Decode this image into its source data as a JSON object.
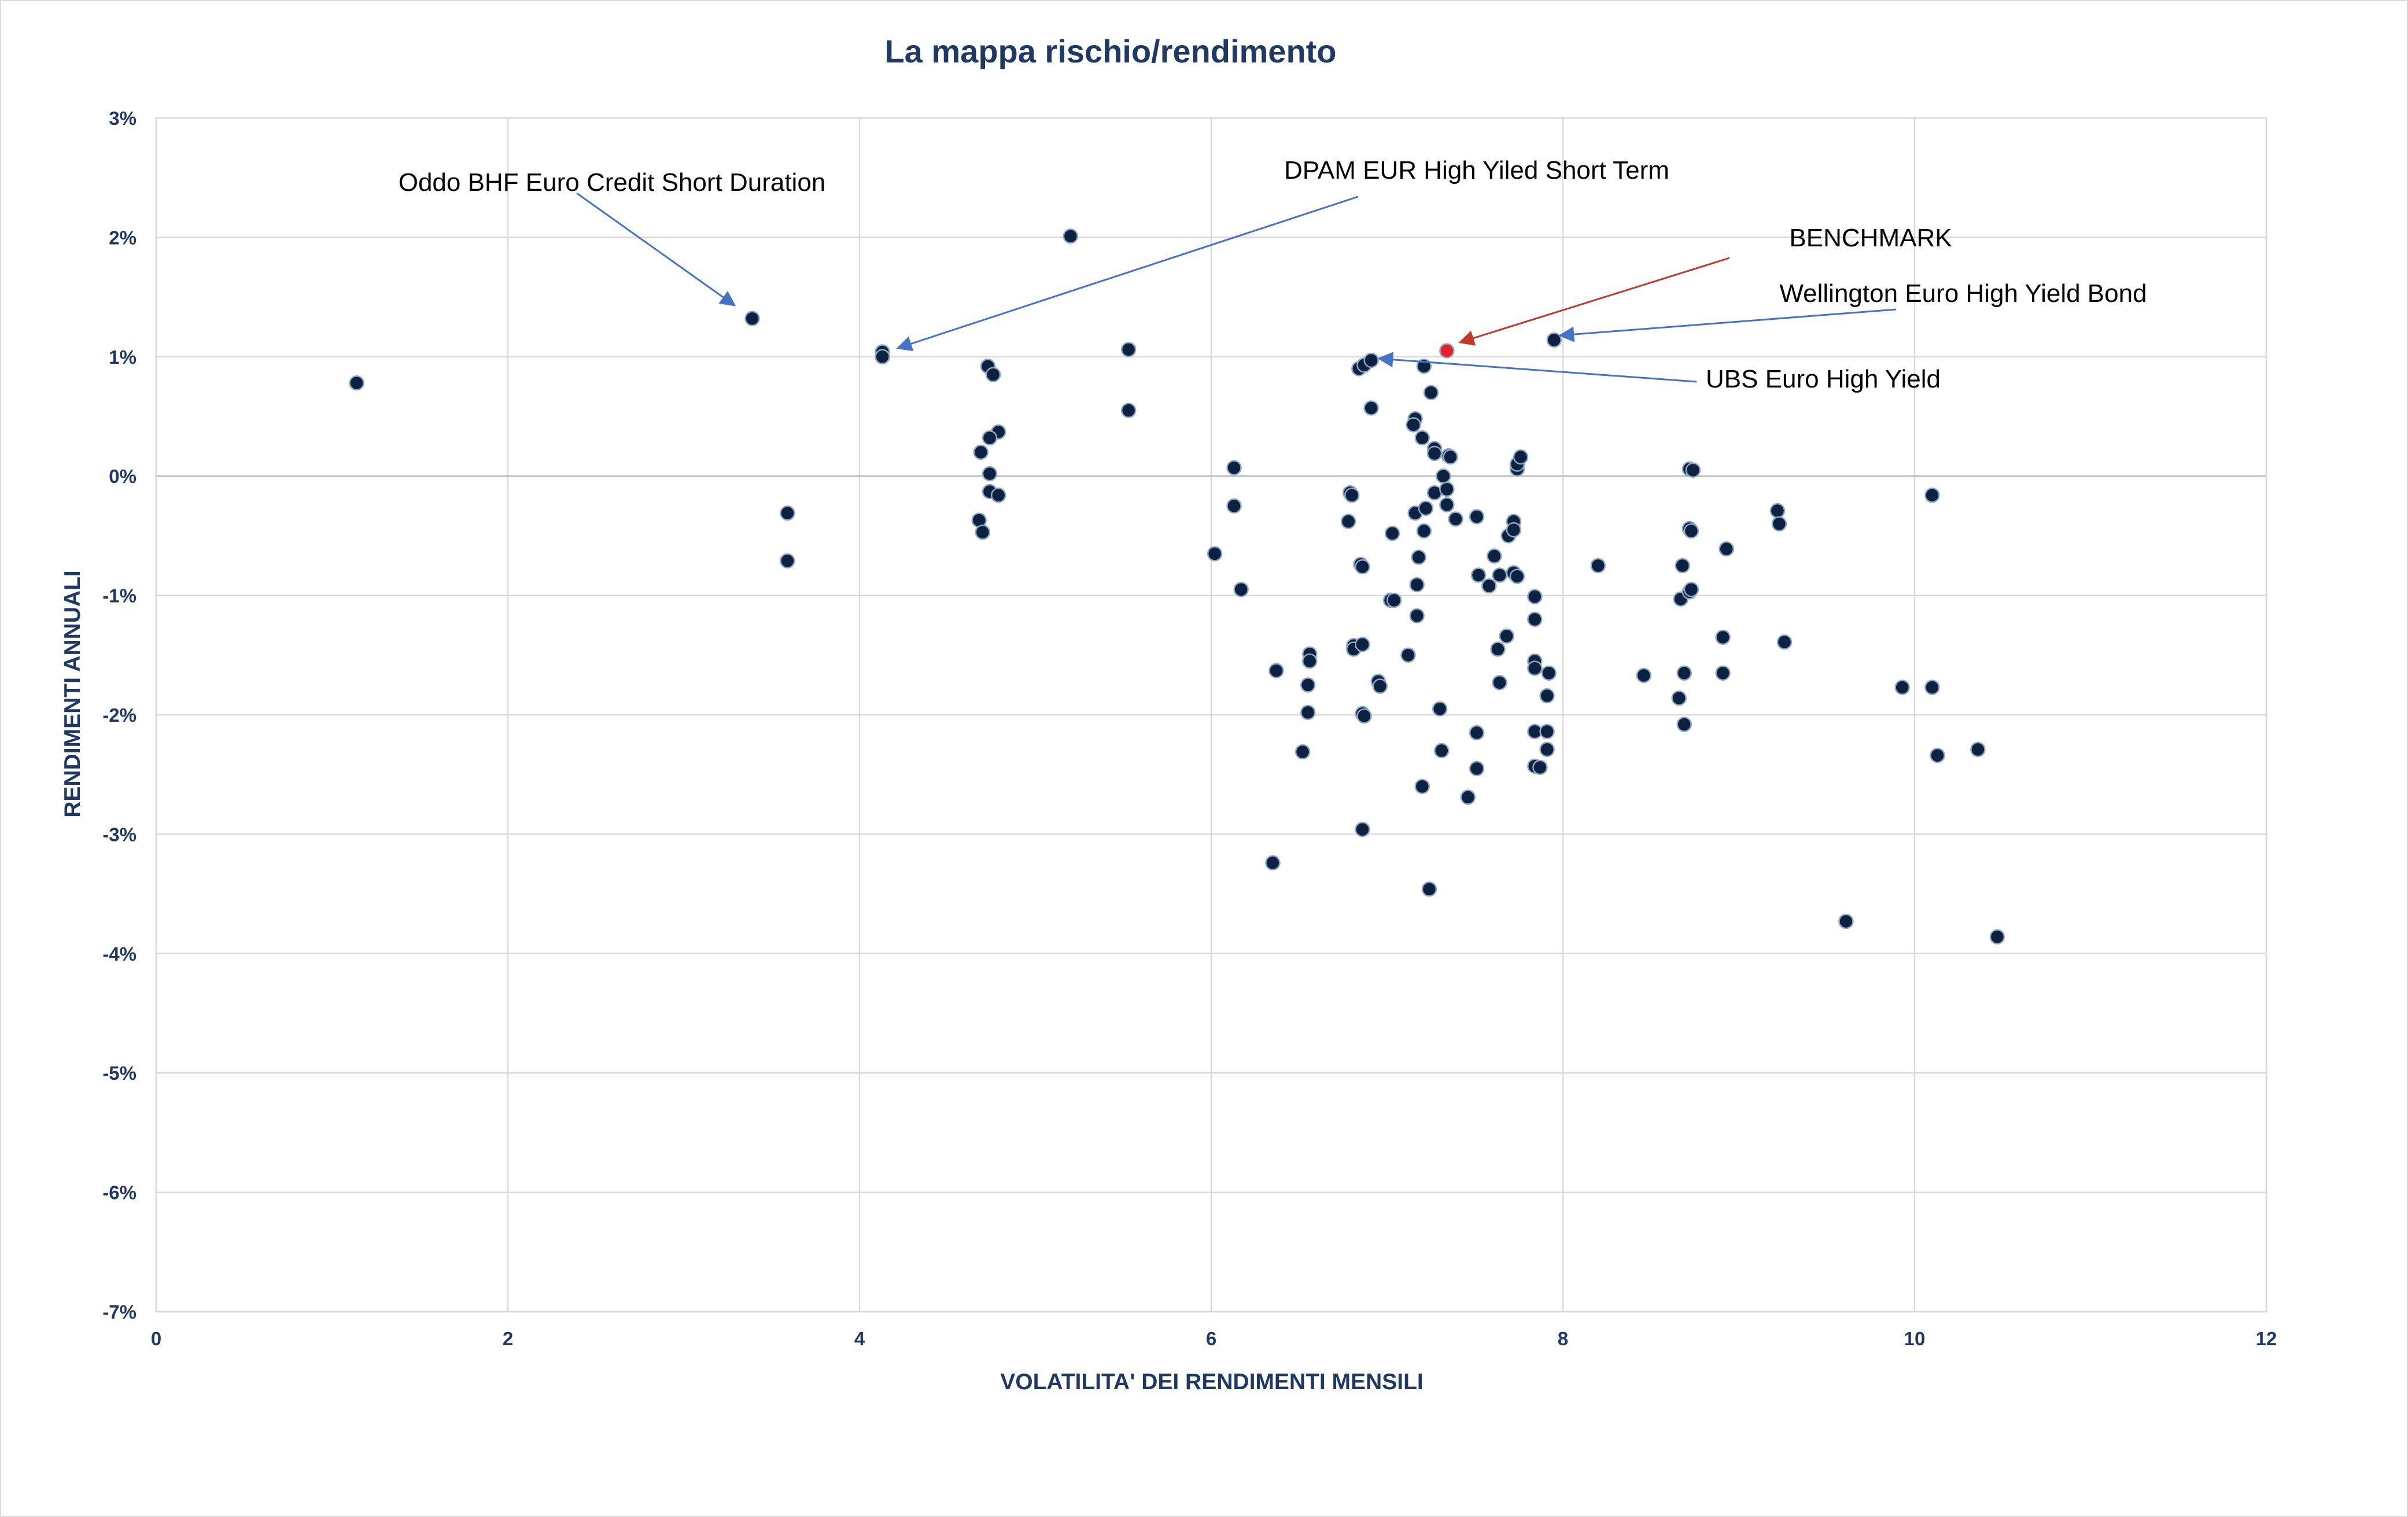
{
  "chart_data": {
    "type": "scatter",
    "title": "La mappa rischio/rendimento",
    "xlabel": "VOLATILITA' DEI RENDIMENTI MENSILI",
    "ylabel": "RENDIMENTI ANNUALI",
    "xlim": [
      0,
      12
    ],
    "ylim": [
      -7,
      3
    ],
    "x_ticks": [
      "0",
      "2",
      "4",
      "6",
      "8",
      "10",
      "12"
    ],
    "y_ticks": [
      "3%",
      "2%",
      "1%",
      "0%",
      "-1%",
      "-2%",
      "-3%",
      "-4%",
      "-5%",
      "-6%",
      "-7%"
    ],
    "grid": true,
    "colors": {
      "points": "#0d2240",
      "benchmark": "#e8202a",
      "arrow": "#4472c4",
      "benchmark_text": "#e8202a"
    },
    "points": [
      [
        1.14,
        0.78
      ],
      [
        3.39,
        1.32
      ],
      [
        3.59,
        -0.31
      ],
      [
        3.59,
        -0.71
      ],
      [
        4.13,
        1.04
      ],
      [
        4.13,
        1.0
      ],
      [
        4.73,
        0.92
      ],
      [
        4.76,
        0.85
      ],
      [
        4.79,
        0.37
      ],
      [
        4.74,
        0.32
      ],
      [
        4.69,
        0.2
      ],
      [
        4.74,
        0.02
      ],
      [
        4.74,
        -0.13
      ],
      [
        4.79,
        -0.16
      ],
      [
        4.68,
        -0.37
      ],
      [
        4.7,
        -0.47
      ],
      [
        5.2,
        2.01
      ],
      [
        5.53,
        1.06
      ],
      [
        5.53,
        0.55
      ],
      [
        6.02,
        -0.65
      ],
      [
        6.13,
        0.07
      ],
      [
        6.13,
        -0.25
      ],
      [
        6.17,
        -0.95
      ],
      [
        6.37,
        -1.63
      ],
      [
        6.35,
        -3.24
      ],
      [
        6.52,
        -2.31
      ],
      [
        6.56,
        -1.49
      ],
      [
        6.56,
        -1.55
      ],
      [
        6.55,
        -1.75
      ],
      [
        6.55,
        -1.98
      ],
      [
        6.79,
        -0.14
      ],
      [
        6.8,
        -0.16
      ],
      [
        6.78,
        -0.38
      ],
      [
        6.81,
        -1.42
      ],
      [
        6.81,
        -1.45
      ],
      [
        6.86,
        -1.41
      ],
      [
        6.85,
        -0.74
      ],
      [
        6.86,
        -0.76
      ],
      [
        6.86,
        -1.99
      ],
      [
        6.87,
        -2.01
      ],
      [
        6.86,
        -2.96
      ],
      [
        6.84,
        0.9
      ],
      [
        6.87,
        0.93
      ],
      [
        6.91,
        0.97
      ],
      [
        6.91,
        0.57
      ],
      [
        6.95,
        -1.72
      ],
      [
        6.96,
        -1.76
      ],
      [
        7.02,
        -1.04
      ],
      [
        7.04,
        -1.04
      ],
      [
        7.03,
        -0.48
      ],
      [
        7.12,
        -1.5
      ],
      [
        7.16,
        0.48
      ],
      [
        7.15,
        0.43
      ],
      [
        7.17,
        -1.17
      ],
      [
        7.17,
        -0.91
      ],
      [
        7.16,
        -0.31
      ],
      [
        7.18,
        -0.68
      ],
      [
        7.2,
        -2.6
      ],
      [
        7.2,
        0.32
      ],
      [
        7.21,
        -0.46
      ],
      [
        7.22,
        -0.27
      ],
      [
        7.21,
        0.92
      ],
      [
        7.25,
        0.7
      ],
      [
        7.24,
        -3.46
      ],
      [
        7.27,
        0.23
      ],
      [
        7.27,
        0.19
      ],
      [
        7.27,
        -0.14
      ],
      [
        7.3,
        -1.95
      ],
      [
        7.31,
        -2.3
      ],
      [
        7.32,
        0.0
      ],
      [
        7.34,
        -0.11
      ],
      [
        7.34,
        -0.24
      ],
      [
        7.35,
        0.17
      ],
      [
        7.36,
        0.16
      ],
      [
        7.39,
        -0.36
      ],
      [
        7.46,
        -2.69
      ],
      [
        7.51,
        -0.34
      ],
      [
        7.52,
        -0.83
      ],
      [
        7.51,
        -2.15
      ],
      [
        7.51,
        -2.45
      ],
      [
        7.58,
        -0.92
      ],
      [
        7.61,
        -0.67
      ],
      [
        7.64,
        -0.83
      ],
      [
        7.63,
        -1.45
      ],
      [
        7.64,
        -1.73
      ],
      [
        7.68,
        -1.34
      ],
      [
        7.69,
        -0.5
      ],
      [
        7.72,
        -0.81
      ],
      [
        7.72,
        -0.38
      ],
      [
        7.72,
        -0.45
      ],
      [
        7.74,
        -0.84
      ],
      [
        7.74,
        0.06
      ],
      [
        7.74,
        0.1
      ],
      [
        7.76,
        0.16
      ],
      [
        7.84,
        -1.01
      ],
      [
        7.84,
        -1.2
      ],
      [
        7.84,
        -1.55
      ],
      [
        7.84,
        -1.61
      ],
      [
        7.84,
        -2.14
      ],
      [
        7.84,
        -2.43
      ],
      [
        7.87,
        -2.44
      ],
      [
        7.91,
        -2.14
      ],
      [
        7.91,
        -2.29
      ],
      [
        7.91,
        -1.84
      ],
      [
        7.92,
        -1.65
      ],
      [
        7.95,
        1.14
      ],
      [
        8.2,
        -0.75
      ],
      [
        8.46,
        -1.67
      ],
      [
        8.66,
        -1.86
      ],
      [
        8.67,
        -1.03
      ],
      [
        8.68,
        -0.75
      ],
      [
        8.69,
        -1.65
      ],
      [
        8.69,
        -2.08
      ],
      [
        8.72,
        -0.97
      ],
      [
        8.73,
        -0.95
      ],
      [
        8.72,
        -0.44
      ],
      [
        8.73,
        -0.46
      ],
      [
        8.72,
        0.06
      ],
      [
        8.74,
        0.05
      ],
      [
        8.91,
        -1.35
      ],
      [
        8.91,
        -1.65
      ],
      [
        8.93,
        -0.61
      ],
      [
        9.22,
        -0.29
      ],
      [
        9.23,
        -0.4
      ],
      [
        9.26,
        -1.39
      ],
      [
        9.61,
        -3.73
      ],
      [
        9.93,
        -1.77
      ],
      [
        10.1,
        -0.16
      ],
      [
        10.1,
        -1.77
      ],
      [
        10.13,
        -2.34
      ],
      [
        10.36,
        -2.29
      ],
      [
        10.47,
        -3.86
      ]
    ],
    "benchmark_point": [
      7.34,
      1.05
    ],
    "annotations": [
      {
        "text": "Oddo BHF Euro Credit Short Duration",
        "target": [
          3.39,
          1.32
        ]
      },
      {
        "text": "DPAM EUR High Yiled Short Term",
        "target": [
          4.13,
          1.04
        ]
      },
      {
        "text": "BENCHMARK",
        "target": [
          7.34,
          1.05
        ],
        "color": "#e8202a"
      },
      {
        "text": "Wellington Euro High Yield Bond",
        "target": [
          7.95,
          1.14
        ]
      },
      {
        "text": "UBS Euro High Yield",
        "target": [
          6.91,
          0.97
        ]
      }
    ]
  }
}
